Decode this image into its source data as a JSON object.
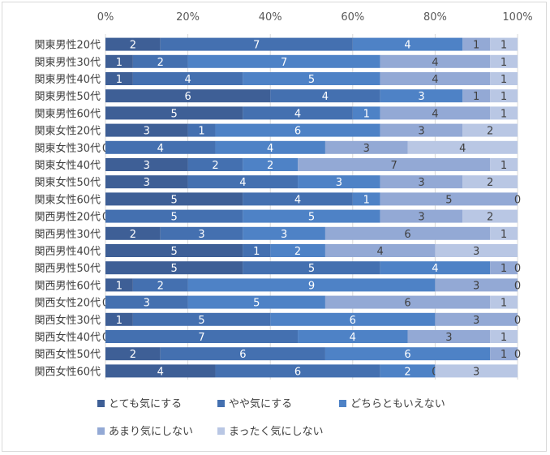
{
  "chart_data": {
    "type": "bar",
    "orientation": "horizontal",
    "stacked": "percent",
    "title": "",
    "xlabel": "",
    "ylabel": "",
    "xlim": [
      0,
      100
    ],
    "x_ticks": [
      "0%",
      "20%",
      "40%",
      "60%",
      "80%",
      "100%"
    ],
    "grid": true,
    "legend_position": "bottom",
    "categories": [
      "関東男性20代",
      "関東男性30代",
      "関東男性40代",
      "関東男性50代",
      "関東男性60代",
      "関東女性20代",
      "関東女性30代",
      "関東女性40代",
      "関東女性50代",
      "関東女性60代",
      "関西男性20代",
      "関西男性30代",
      "関西男性40代",
      "関西男性50代",
      "関西男性60代",
      "関西女性20代",
      "関西女性30代",
      "関西女性40代",
      "関西女性50代",
      "関西女性60代"
    ],
    "series": [
      {
        "name": "とても気にする",
        "color": "#3e5f96",
        "values": [
          2,
          1,
          1,
          6,
          5,
          3,
          0,
          3,
          3,
          5,
          0,
          2,
          5,
          5,
          1,
          0,
          1,
          0,
          2,
          4
        ]
      },
      {
        "name": "やや気にする",
        "color": "#4470b0",
        "values": [
          7,
          2,
          4,
          4,
          4,
          1,
          4,
          2,
          4,
          4,
          5,
          3,
          1,
          5,
          2,
          3,
          5,
          7,
          6,
          6
        ]
      },
      {
        "name": "どちらともいえない",
        "color": "#4e82c6",
        "values": [
          4,
          7,
          5,
          3,
          1,
          6,
          4,
          2,
          3,
          1,
          5,
          3,
          2,
          4,
          9,
          5,
          6,
          4,
          6,
          2
        ]
      },
      {
        "name": "あまり気にしない",
        "color": "#93a9d5",
        "values": [
          1,
          4,
          4,
          1,
          4,
          3,
          3,
          7,
          3,
          5,
          3,
          6,
          4,
          1,
          3,
          6,
          3,
          3,
          1,
          0
        ]
      },
      {
        "name": "まったく気にしない",
        "color": "#b9c7e4",
        "values": [
          1,
          1,
          1,
          1,
          1,
          2,
          4,
          1,
          2,
          0,
          2,
          1,
          3,
          0,
          0,
          1,
          0,
          1,
          0,
          3
        ]
      }
    ]
  }
}
